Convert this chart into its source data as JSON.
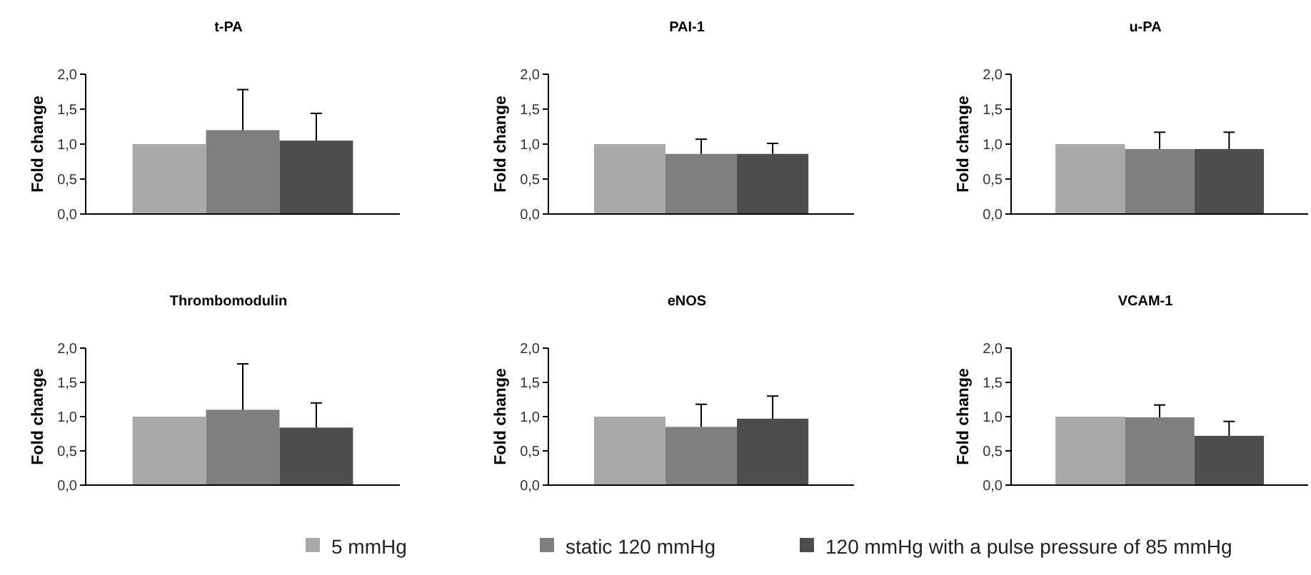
{
  "chart_data": [
    {
      "type": "bar",
      "title": "t-PA",
      "ylabel": "Fold change",
      "categories": [
        null
      ],
      "ylim": [
        0,
        2
      ],
      "yticks": [
        {
          "value": 0,
          "label": "0,0"
        },
        {
          "value": 0.5,
          "label": "0,5"
        },
        {
          "value": 1,
          "label": "1,0"
        },
        {
          "value": 1.5,
          "label": "1,5"
        },
        {
          "value": 2,
          "label": "2,0"
        }
      ],
      "legend": "bottom",
      "series": [
        {
          "name": "5 mmHg",
          "color": "#a9a9a9",
          "values": [
            1.0
          ]
        },
        {
          "name": "static 120 mmHg",
          "color": "#7f7f7f",
          "values": [
            1.2
          ],
          "errors": [
            [
              1.2,
              1.78
            ]
          ]
        },
        {
          "name": "120 mmHg with a pulse pressure of 85 mmHg",
          "color": "#4d4d4d",
          "values": [
            1.05
          ],
          "errors": [
            [
              1.05,
              1.44
            ]
          ]
        }
      ]
    },
    {
      "type": "bar",
      "title": "PAI-1",
      "ylabel": "Fold change",
      "categories": [
        null
      ],
      "ylim": [
        0,
        2
      ],
      "yticks": [
        {
          "value": 0,
          "label": "0,0"
        },
        {
          "value": 0.5,
          "label": "0,5"
        },
        {
          "value": 1,
          "label": "1,0"
        },
        {
          "value": 1.5,
          "label": "1,5"
        },
        {
          "value": 2,
          "label": "2,0"
        }
      ],
      "series": [
        {
          "color": "#a9a9a9",
          "values": [
            1.0
          ]
        },
        {
          "color": "#7f7f7f",
          "values": [
            0.86
          ],
          "errors": [
            [
              0.86,
              1.07
            ]
          ]
        },
        {
          "color": "#4d4d4d",
          "values": [
            0.86
          ],
          "errors": [
            [
              0.86,
              1.01
            ]
          ]
        }
      ]
    },
    {
      "type": "bar",
      "title": "u-PA",
      "ylabel": "Fold change",
      "categories": [
        null
      ],
      "ylim": [
        0,
        2
      ],
      "yticks": [
        {
          "value": 0,
          "label": "0,0"
        },
        {
          "value": 0.5,
          "label": "0,5"
        },
        {
          "value": 1,
          "label": "1,0"
        },
        {
          "value": 1.5,
          "label": "1,5"
        },
        {
          "value": 2,
          "label": "2,0"
        }
      ],
      "series": [
        {
          "color": "#a9a9a9",
          "values": [
            1.0
          ]
        },
        {
          "color": "#7f7f7f",
          "values": [
            0.93
          ],
          "errors": [
            [
              0.93,
              1.17
            ]
          ]
        },
        {
          "color": "#4d4d4d",
          "values": [
            0.93
          ],
          "errors": [
            [
              0.93,
              1.17
            ]
          ]
        }
      ]
    },
    {
      "type": "bar",
      "title": "Thrombomodulin",
      "ylabel": "Fold change",
      "categories": [
        null
      ],
      "ylim": [
        0,
        2
      ],
      "yticks": [
        {
          "value": 0,
          "label": "0,0"
        },
        {
          "value": 0.5,
          "label": "0,5"
        },
        {
          "value": 1,
          "label": "1,0"
        },
        {
          "value": 1.5,
          "label": "1,5"
        },
        {
          "value": 2,
          "label": "2,0"
        }
      ],
      "series": [
        {
          "color": "#a9a9a9",
          "values": [
            1.0
          ]
        },
        {
          "color": "#7f7f7f",
          "values": [
            1.1
          ],
          "errors": [
            [
              1.1,
              1.77
            ]
          ]
        },
        {
          "color": "#4d4d4d",
          "values": [
            0.84
          ],
          "errors": [
            [
              0.84,
              1.2
            ]
          ]
        }
      ]
    },
    {
      "type": "bar",
      "title": "eNOS",
      "ylabel": "Fold change",
      "categories": [
        null
      ],
      "ylim": [
        0,
        2
      ],
      "yticks": [
        {
          "value": 0,
          "label": "0,0"
        },
        {
          "value": 0.5,
          "label": "0,5"
        },
        {
          "value": 1,
          "label": "1,0"
        },
        {
          "value": 1.5,
          "label": "1,5"
        },
        {
          "value": 2,
          "label": "2,0"
        }
      ],
      "series": [
        {
          "color": "#a9a9a9",
          "values": [
            1.0
          ]
        },
        {
          "color": "#7f7f7f",
          "values": [
            0.85
          ],
          "errors": [
            [
              0.85,
              1.18
            ]
          ]
        },
        {
          "color": "#4d4d4d",
          "values": [
            0.97
          ],
          "errors": [
            [
              0.97,
              1.3
            ]
          ]
        }
      ]
    },
    {
      "type": "bar",
      "title": "VCAM-1",
      "ylabel": "Fold change",
      "categories": [
        null
      ],
      "ylim": [
        0,
        2
      ],
      "yticks": [
        {
          "value": 0,
          "label": "0,0"
        },
        {
          "value": 0.5,
          "label": "0,5"
        },
        {
          "value": 1,
          "label": "1,0"
        },
        {
          "value": 1.5,
          "label": "1,5"
        },
        {
          "value": 2,
          "label": "2,0"
        }
      ],
      "series": [
        {
          "color": "#a9a9a9",
          "values": [
            1.0
          ]
        },
        {
          "color": "#7f7f7f",
          "values": [
            0.99
          ],
          "errors": [
            [
              0.99,
              1.17
            ]
          ]
        },
        {
          "color": "#4d4d4d",
          "values": [
            0.72
          ],
          "errors": [
            [
              0.72,
              0.93
            ]
          ]
        }
      ]
    }
  ]
}
